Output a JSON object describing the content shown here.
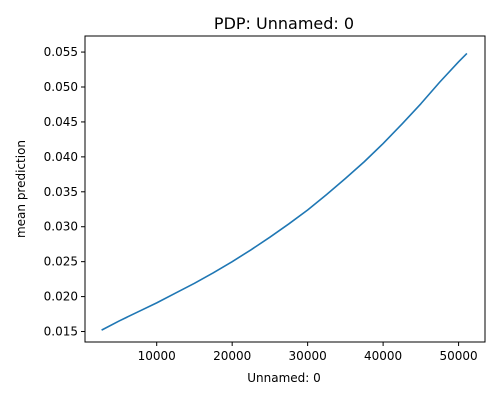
{
  "chart_data": {
    "type": "line",
    "title": "PDP: Unnamed: 0",
    "xlabel": "Unnamed: 0",
    "ylabel": "mean prediction",
    "xlim": [
      500,
      53500
    ],
    "ylim": [
      0.0135,
      0.0573
    ],
    "xticks": [
      10000,
      20000,
      30000,
      40000,
      50000
    ],
    "xtick_labels": [
      "10000",
      "20000",
      "30000",
      "40000",
      "50000"
    ],
    "yticks": [
      0.015,
      0.02,
      0.025,
      0.03,
      0.035,
      0.04,
      0.045,
      0.05,
      0.055
    ],
    "ytick_labels": [
      "0.015",
      "0.020",
      "0.025",
      "0.030",
      "0.035",
      "0.040",
      "0.045",
      "0.050",
      "0.055"
    ],
    "grid": false,
    "legend": "none",
    "series": [
      {
        "color": "#1f77b4",
        "x": [
          2700,
          5000,
          7500,
          10000,
          12500,
          15000,
          17500,
          20000,
          22500,
          25000,
          27500,
          30000,
          32500,
          35000,
          37500,
          40000,
          42500,
          45000,
          47500,
          50000,
          51100
        ],
        "y": [
          0.0152,
          0.0165,
          0.0178,
          0.0191,
          0.0205,
          0.0219,
          0.0234,
          0.025,
          0.0267,
          0.0285,
          0.0304,
          0.0324,
          0.0346,
          0.0369,
          0.0393,
          0.0419,
          0.0447,
          0.0476,
          0.0507,
          0.0536,
          0.0548
        ]
      }
    ]
  }
}
